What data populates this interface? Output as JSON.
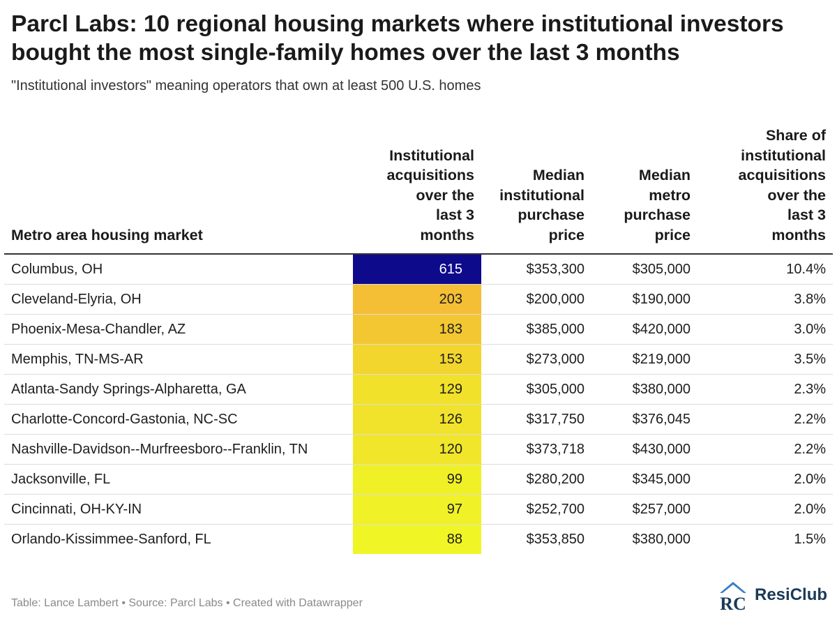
{
  "title": "Parcl Labs: 10 regional housing markets where institutional investors bought the most single-family homes over the last 3 months",
  "subtitle": "\"Institutional investors\" meaning operators that own at least 500 U.S. homes",
  "footer": "Table: Lance Lambert • Source: Parcl Labs • Created with Datawrapper",
  "logo": {
    "text": "ResiClub",
    "mark_letters": "RC",
    "color": "#1b3a57",
    "accent": "#3a7fc4"
  },
  "heat_scale": {
    "low_color": "#f0f526",
    "mid_color": "#f5a93a",
    "high_color": "#0e0a8c"
  },
  "chart_data": {
    "type": "table",
    "columns": [
      [
        "Metro area housing market"
      ],
      [
        "Institutional",
        "acquisitions",
        "over the",
        "last 3",
        "months"
      ],
      [
        "Median",
        "institutional",
        "purchase",
        "price"
      ],
      [
        "Median",
        "metro",
        "purchase",
        "price"
      ],
      [
        "Share of",
        "institutional",
        "acquisitions",
        "over the",
        "last 3",
        "months"
      ]
    ],
    "rows": [
      [
        "Columbus, OH",
        "615",
        "$353,300",
        "$305,000",
        "10.4%"
      ],
      [
        "Cleveland-Elyria, OH",
        "203",
        "$200,000",
        "$190,000",
        "3.8%"
      ],
      [
        "Phoenix-Mesa-Chandler, AZ",
        "183",
        "$385,000",
        "$420,000",
        "3.0%"
      ],
      [
        "Memphis, TN-MS-AR",
        "153",
        "$273,000",
        "$219,000",
        "3.5%"
      ],
      [
        "Atlanta-Sandy Springs-Alpharetta, GA",
        "129",
        "$305,000",
        "$380,000",
        "2.3%"
      ],
      [
        "Charlotte-Concord-Gastonia, NC-SC",
        "126",
        "$317,750",
        "$376,045",
        "2.2%"
      ],
      [
        "Nashville-Davidson--Murfreesboro--Franklin, TN",
        "120",
        "$373,718",
        "$430,000",
        "2.2%"
      ],
      [
        "Jacksonville, FL",
        "99",
        "$280,200",
        "$345,000",
        "2.0%"
      ],
      [
        "Cincinnati, OH-KY-IN",
        "97",
        "$252,700",
        "$257,000",
        "2.0%"
      ],
      [
        "Orlando-Kissimmee-Sanford, FL",
        "88",
        "$353,850",
        "$380,000",
        "1.5%"
      ]
    ],
    "heat_column": 1
  }
}
